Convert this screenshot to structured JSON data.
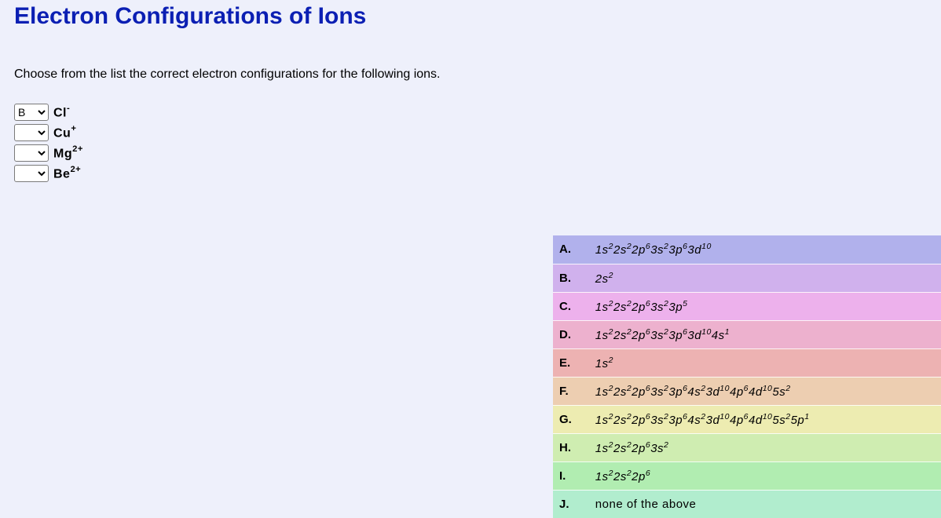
{
  "title": "Electron Configurations of Ions",
  "prompt": "Choose from the list the correct electron configurations for the following ions.",
  "select_options": [
    "",
    "A",
    "B",
    "C",
    "D",
    "E",
    "F",
    "G",
    "H",
    "I",
    "J"
  ],
  "ions": [
    {
      "selected": "B",
      "base": "Cl",
      "charge": "-"
    },
    {
      "selected": "",
      "base": "Cu",
      "charge": "+"
    },
    {
      "selected": "",
      "base": "Mg",
      "charge": "2+"
    },
    {
      "selected": "",
      "base": "Be",
      "charge": "2+"
    }
  ],
  "answers": [
    {
      "letter": "A.",
      "bg": "#b1b1ec",
      "parts": [
        [
          "1s",
          "2"
        ],
        [
          "2s",
          "2"
        ],
        [
          "2p",
          "6"
        ],
        [
          "3s",
          "2"
        ],
        [
          "3p",
          "6"
        ],
        [
          "3d",
          "10"
        ]
      ]
    },
    {
      "letter": "B.",
      "bg": "#d0b1ed",
      "parts": [
        [
          "2s",
          "2"
        ]
      ]
    },
    {
      "letter": "C.",
      "bg": "#edb1ec",
      "parts": [
        [
          "1s",
          "2"
        ],
        [
          "2s",
          "2"
        ],
        [
          "2p",
          "6"
        ],
        [
          "3s",
          "2"
        ],
        [
          "3p",
          "5"
        ]
      ]
    },
    {
      "letter": "D.",
      "bg": "#edb1ce",
      "parts": [
        [
          "1s",
          "2"
        ],
        [
          "2s",
          "2"
        ],
        [
          "2p",
          "6"
        ],
        [
          "3s",
          "2"
        ],
        [
          "3p",
          "6"
        ],
        [
          "3d",
          "10"
        ],
        [
          "4s",
          "1"
        ]
      ]
    },
    {
      "letter": "E.",
      "bg": "#edb2b2",
      "parts": [
        [
          "1s",
          "2"
        ]
      ]
    },
    {
      "letter": "F.",
      "bg": "#edceb1",
      "parts": [
        [
          "1s",
          "2"
        ],
        [
          "2s",
          "2"
        ],
        [
          "2p",
          "6"
        ],
        [
          "3s",
          "2"
        ],
        [
          "3p",
          "6"
        ],
        [
          "4s",
          "2"
        ],
        [
          "3d",
          "10"
        ],
        [
          "4p",
          "6"
        ],
        [
          "4d",
          "10"
        ],
        [
          "5s",
          "2"
        ]
      ]
    },
    {
      "letter": "G.",
      "bg": "#edecb1",
      "parts": [
        [
          "1s",
          "2"
        ],
        [
          "2s",
          "2"
        ],
        [
          "2p",
          "6"
        ],
        [
          "3s",
          "2"
        ],
        [
          "3p",
          "6"
        ],
        [
          "4s",
          "2"
        ],
        [
          "3d",
          "10"
        ],
        [
          "4p",
          "6"
        ],
        [
          "4d",
          "10"
        ],
        [
          "5s",
          "2"
        ],
        [
          "5p",
          "1"
        ]
      ]
    },
    {
      "letter": "H.",
      "bg": "#cfedb1",
      "parts": [
        [
          "1s",
          "2"
        ],
        [
          "2s",
          "2"
        ],
        [
          "2p",
          "6"
        ],
        [
          "3s",
          "2"
        ]
      ]
    },
    {
      "letter": "I.",
      "bg": "#b1edb1",
      "parts": [
        [
          "1s",
          "2"
        ],
        [
          "2s",
          "2"
        ],
        [
          "2p",
          "6"
        ]
      ]
    },
    {
      "letter": "J.",
      "bg": "#b1edce",
      "plain": "none of the above"
    }
  ]
}
